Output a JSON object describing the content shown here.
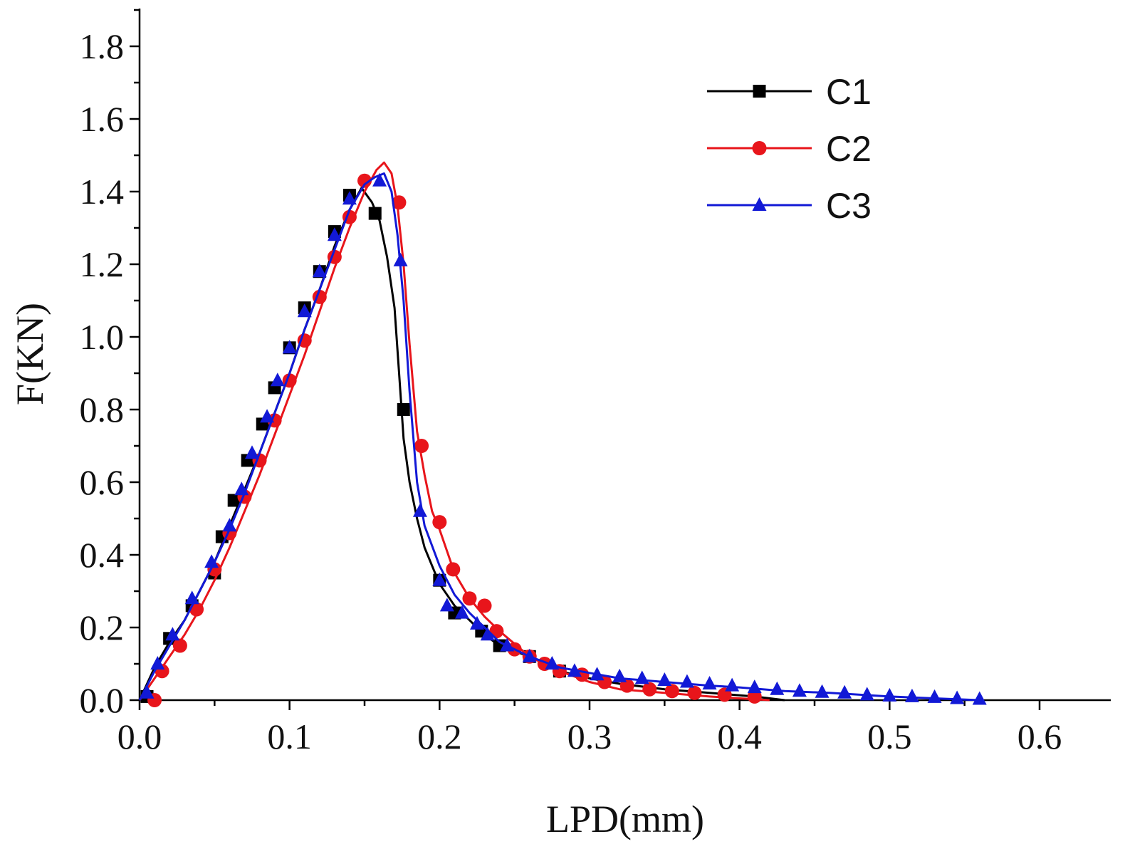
{
  "chart_data": {
    "type": "line",
    "title": "",
    "xlabel": "LPD(mm)",
    "ylabel": "F(KN)",
    "xlim": [
      0.0,
      0.65
    ],
    "ylim": [
      0.0,
      1.9
    ],
    "x_ticks": [
      0.0,
      0.1,
      0.2,
      0.3,
      0.4,
      0.5,
      0.6
    ],
    "x_tick_labels": [
      "0.0",
      "0.1",
      "0.2",
      "0.3",
      "0.4",
      "0.5",
      "0.6"
    ],
    "y_ticks": [
      0.0,
      0.2,
      0.4,
      0.6,
      0.8,
      1.0,
      1.2,
      1.4,
      1.6,
      1.8
    ],
    "y_tick_labels": [
      "0.0",
      "0.2",
      "0.4",
      "0.6",
      "0.8",
      "1.0",
      "1.2",
      "1.4",
      "1.6",
      "1.8"
    ],
    "grid": false,
    "legend_position": "top-right",
    "series": [
      {
        "name": "C1",
        "color": "#000000",
        "marker": "square",
        "points": [
          [
            0.0,
            0.0
          ],
          [
            0.01,
            0.09
          ],
          [
            0.02,
            0.16
          ],
          [
            0.03,
            0.22
          ],
          [
            0.04,
            0.3
          ],
          [
            0.05,
            0.38
          ],
          [
            0.06,
            0.48
          ],
          [
            0.07,
            0.58
          ],
          [
            0.08,
            0.68
          ],
          [
            0.09,
            0.79
          ],
          [
            0.1,
            0.9
          ],
          [
            0.11,
            1.02
          ],
          [
            0.12,
            1.13
          ],
          [
            0.13,
            1.25
          ],
          [
            0.14,
            1.35
          ],
          [
            0.148,
            1.41
          ],
          [
            0.155,
            1.37
          ],
          [
            0.16,
            1.32
          ],
          [
            0.165,
            1.22
          ],
          [
            0.17,
            1.08
          ],
          [
            0.173,
            0.9
          ],
          [
            0.176,
            0.72
          ],
          [
            0.18,
            0.6
          ],
          [
            0.185,
            0.5
          ],
          [
            0.19,
            0.42
          ],
          [
            0.2,
            0.32
          ],
          [
            0.21,
            0.26
          ],
          [
            0.22,
            0.22
          ],
          [
            0.23,
            0.18
          ],
          [
            0.24,
            0.15
          ],
          [
            0.26,
            0.12
          ],
          [
            0.28,
            0.08
          ],
          [
            0.3,
            0.06
          ],
          [
            0.32,
            0.045
          ],
          [
            0.35,
            0.03
          ],
          [
            0.38,
            0.02
          ],
          [
            0.41,
            0.01
          ],
          [
            0.43,
            0.0
          ]
        ],
        "marker_points": [
          [
            0.005,
            0.01
          ],
          [
            0.02,
            0.17
          ],
          [
            0.035,
            0.26
          ],
          [
            0.05,
            0.35
          ],
          [
            0.055,
            0.45
          ],
          [
            0.063,
            0.55
          ],
          [
            0.072,
            0.66
          ],
          [
            0.082,
            0.76
          ],
          [
            0.09,
            0.86
          ],
          [
            0.1,
            0.97
          ],
          [
            0.11,
            1.08
          ],
          [
            0.12,
            1.18
          ],
          [
            0.13,
            1.29
          ],
          [
            0.14,
            1.39
          ],
          [
            0.157,
            1.34
          ],
          [
            0.176,
            0.8
          ],
          [
            0.2,
            0.33
          ],
          [
            0.21,
            0.24
          ],
          [
            0.228,
            0.19
          ],
          [
            0.24,
            0.15
          ],
          [
            0.26,
            0.12
          ],
          [
            0.28,
            0.08
          ]
        ]
      },
      {
        "name": "C2",
        "color": "#e8151b",
        "marker": "circle",
        "points": [
          [
            0.0,
            0.0
          ],
          [
            0.01,
            0.06
          ],
          [
            0.02,
            0.12
          ],
          [
            0.03,
            0.18
          ],
          [
            0.04,
            0.25
          ],
          [
            0.05,
            0.33
          ],
          [
            0.06,
            0.42
          ],
          [
            0.07,
            0.52
          ],
          [
            0.08,
            0.62
          ],
          [
            0.09,
            0.73
          ],
          [
            0.1,
            0.84
          ],
          [
            0.11,
            0.95
          ],
          [
            0.12,
            1.07
          ],
          [
            0.13,
            1.19
          ],
          [
            0.14,
            1.3
          ],
          [
            0.15,
            1.4
          ],
          [
            0.158,
            1.46
          ],
          [
            0.163,
            1.48
          ],
          [
            0.168,
            1.45
          ],
          [
            0.172,
            1.36
          ],
          [
            0.176,
            1.2
          ],
          [
            0.18,
            0.98
          ],
          [
            0.185,
            0.74
          ],
          [
            0.19,
            0.62
          ],
          [
            0.195,
            0.52
          ],
          [
            0.2,
            0.47
          ],
          [
            0.21,
            0.35
          ],
          [
            0.22,
            0.28
          ],
          [
            0.23,
            0.23
          ],
          [
            0.24,
            0.19
          ],
          [
            0.26,
            0.12
          ],
          [
            0.28,
            0.08
          ],
          [
            0.3,
            0.05
          ],
          [
            0.32,
            0.03
          ],
          [
            0.35,
            0.02
          ],
          [
            0.38,
            0.01
          ],
          [
            0.42,
            0.0
          ]
        ],
        "marker_points": [
          [
            0.01,
            0.0
          ],
          [
            0.015,
            0.08
          ],
          [
            0.027,
            0.15
          ],
          [
            0.038,
            0.25
          ],
          [
            0.05,
            0.36
          ],
          [
            0.06,
            0.46
          ],
          [
            0.07,
            0.56
          ],
          [
            0.08,
            0.66
          ],
          [
            0.09,
            0.77
          ],
          [
            0.1,
            0.88
          ],
          [
            0.11,
            0.99
          ],
          [
            0.12,
            1.11
          ],
          [
            0.13,
            1.22
          ],
          [
            0.14,
            1.33
          ],
          [
            0.15,
            1.43
          ],
          [
            0.173,
            1.37
          ],
          [
            0.188,
            0.7
          ],
          [
            0.2,
            0.49
          ],
          [
            0.209,
            0.36
          ],
          [
            0.22,
            0.28
          ],
          [
            0.23,
            0.26
          ],
          [
            0.238,
            0.19
          ],
          [
            0.25,
            0.14
          ],
          [
            0.26,
            0.12
          ],
          [
            0.27,
            0.1
          ],
          [
            0.28,
            0.08
          ],
          [
            0.295,
            0.07
          ],
          [
            0.31,
            0.05
          ],
          [
            0.325,
            0.04
          ],
          [
            0.34,
            0.03
          ],
          [
            0.355,
            0.025
          ],
          [
            0.37,
            0.02
          ],
          [
            0.39,
            0.015
          ],
          [
            0.41,
            0.01
          ]
        ]
      },
      {
        "name": "C3",
        "color": "#1219d6",
        "marker": "triangle",
        "points": [
          [
            0.0,
            0.0
          ],
          [
            0.01,
            0.08
          ],
          [
            0.02,
            0.15
          ],
          [
            0.03,
            0.22
          ],
          [
            0.04,
            0.3
          ],
          [
            0.05,
            0.38
          ],
          [
            0.06,
            0.47
          ],
          [
            0.07,
            0.57
          ],
          [
            0.08,
            0.68
          ],
          [
            0.09,
            0.79
          ],
          [
            0.1,
            0.9
          ],
          [
            0.11,
            1.02
          ],
          [
            0.12,
            1.13
          ],
          [
            0.13,
            1.24
          ],
          [
            0.14,
            1.35
          ],
          [
            0.15,
            1.42
          ],
          [
            0.157,
            1.44
          ],
          [
            0.163,
            1.45
          ],
          [
            0.168,
            1.4
          ],
          [
            0.172,
            1.28
          ],
          [
            0.176,
            1.1
          ],
          [
            0.18,
            0.85
          ],
          [
            0.185,
            0.6
          ],
          [
            0.19,
            0.48
          ],
          [
            0.2,
            0.37
          ],
          [
            0.21,
            0.29
          ],
          [
            0.22,
            0.24
          ],
          [
            0.23,
            0.2
          ],
          [
            0.24,
            0.16
          ],
          [
            0.26,
            0.12
          ],
          [
            0.28,
            0.09
          ],
          [
            0.3,
            0.075
          ],
          [
            0.32,
            0.06
          ],
          [
            0.35,
            0.05
          ],
          [
            0.38,
            0.04
          ],
          [
            0.4,
            0.035
          ],
          [
            0.43,
            0.025
          ],
          [
            0.46,
            0.02
          ],
          [
            0.5,
            0.01
          ],
          [
            0.53,
            0.005
          ],
          [
            0.56,
            0.0
          ]
        ],
        "marker_points": [
          [
            0.005,
            0.02
          ],
          [
            0.012,
            0.1
          ],
          [
            0.022,
            0.18
          ],
          [
            0.035,
            0.28
          ],
          [
            0.048,
            0.38
          ],
          [
            0.06,
            0.48
          ],
          [
            0.068,
            0.58
          ],
          [
            0.075,
            0.68
          ],
          [
            0.085,
            0.78
          ],
          [
            0.092,
            0.88
          ],
          [
            0.1,
            0.97
          ],
          [
            0.11,
            1.07
          ],
          [
            0.12,
            1.18
          ],
          [
            0.13,
            1.28
          ],
          [
            0.14,
            1.38
          ],
          [
            0.16,
            1.43
          ],
          [
            0.174,
            1.21
          ],
          [
            0.187,
            0.52
          ],
          [
            0.2,
            0.33
          ],
          [
            0.205,
            0.26
          ],
          [
            0.215,
            0.24
          ],
          [
            0.225,
            0.21
          ],
          [
            0.232,
            0.18
          ],
          [
            0.245,
            0.15
          ],
          [
            0.26,
            0.12
          ],
          [
            0.275,
            0.1
          ],
          [
            0.29,
            0.08
          ],
          [
            0.305,
            0.07
          ],
          [
            0.32,
            0.065
          ],
          [
            0.335,
            0.06
          ],
          [
            0.35,
            0.055
          ],
          [
            0.365,
            0.05
          ],
          [
            0.38,
            0.045
          ],
          [
            0.395,
            0.04
          ],
          [
            0.41,
            0.035
          ],
          [
            0.425,
            0.03
          ],
          [
            0.44,
            0.025
          ],
          [
            0.455,
            0.022
          ],
          [
            0.47,
            0.02
          ],
          [
            0.485,
            0.015
          ],
          [
            0.5,
            0.012
          ],
          [
            0.515,
            0.01
          ],
          [
            0.53,
            0.008
          ],
          [
            0.545,
            0.005
          ],
          [
            0.56,
            0.003
          ]
        ]
      }
    ]
  }
}
